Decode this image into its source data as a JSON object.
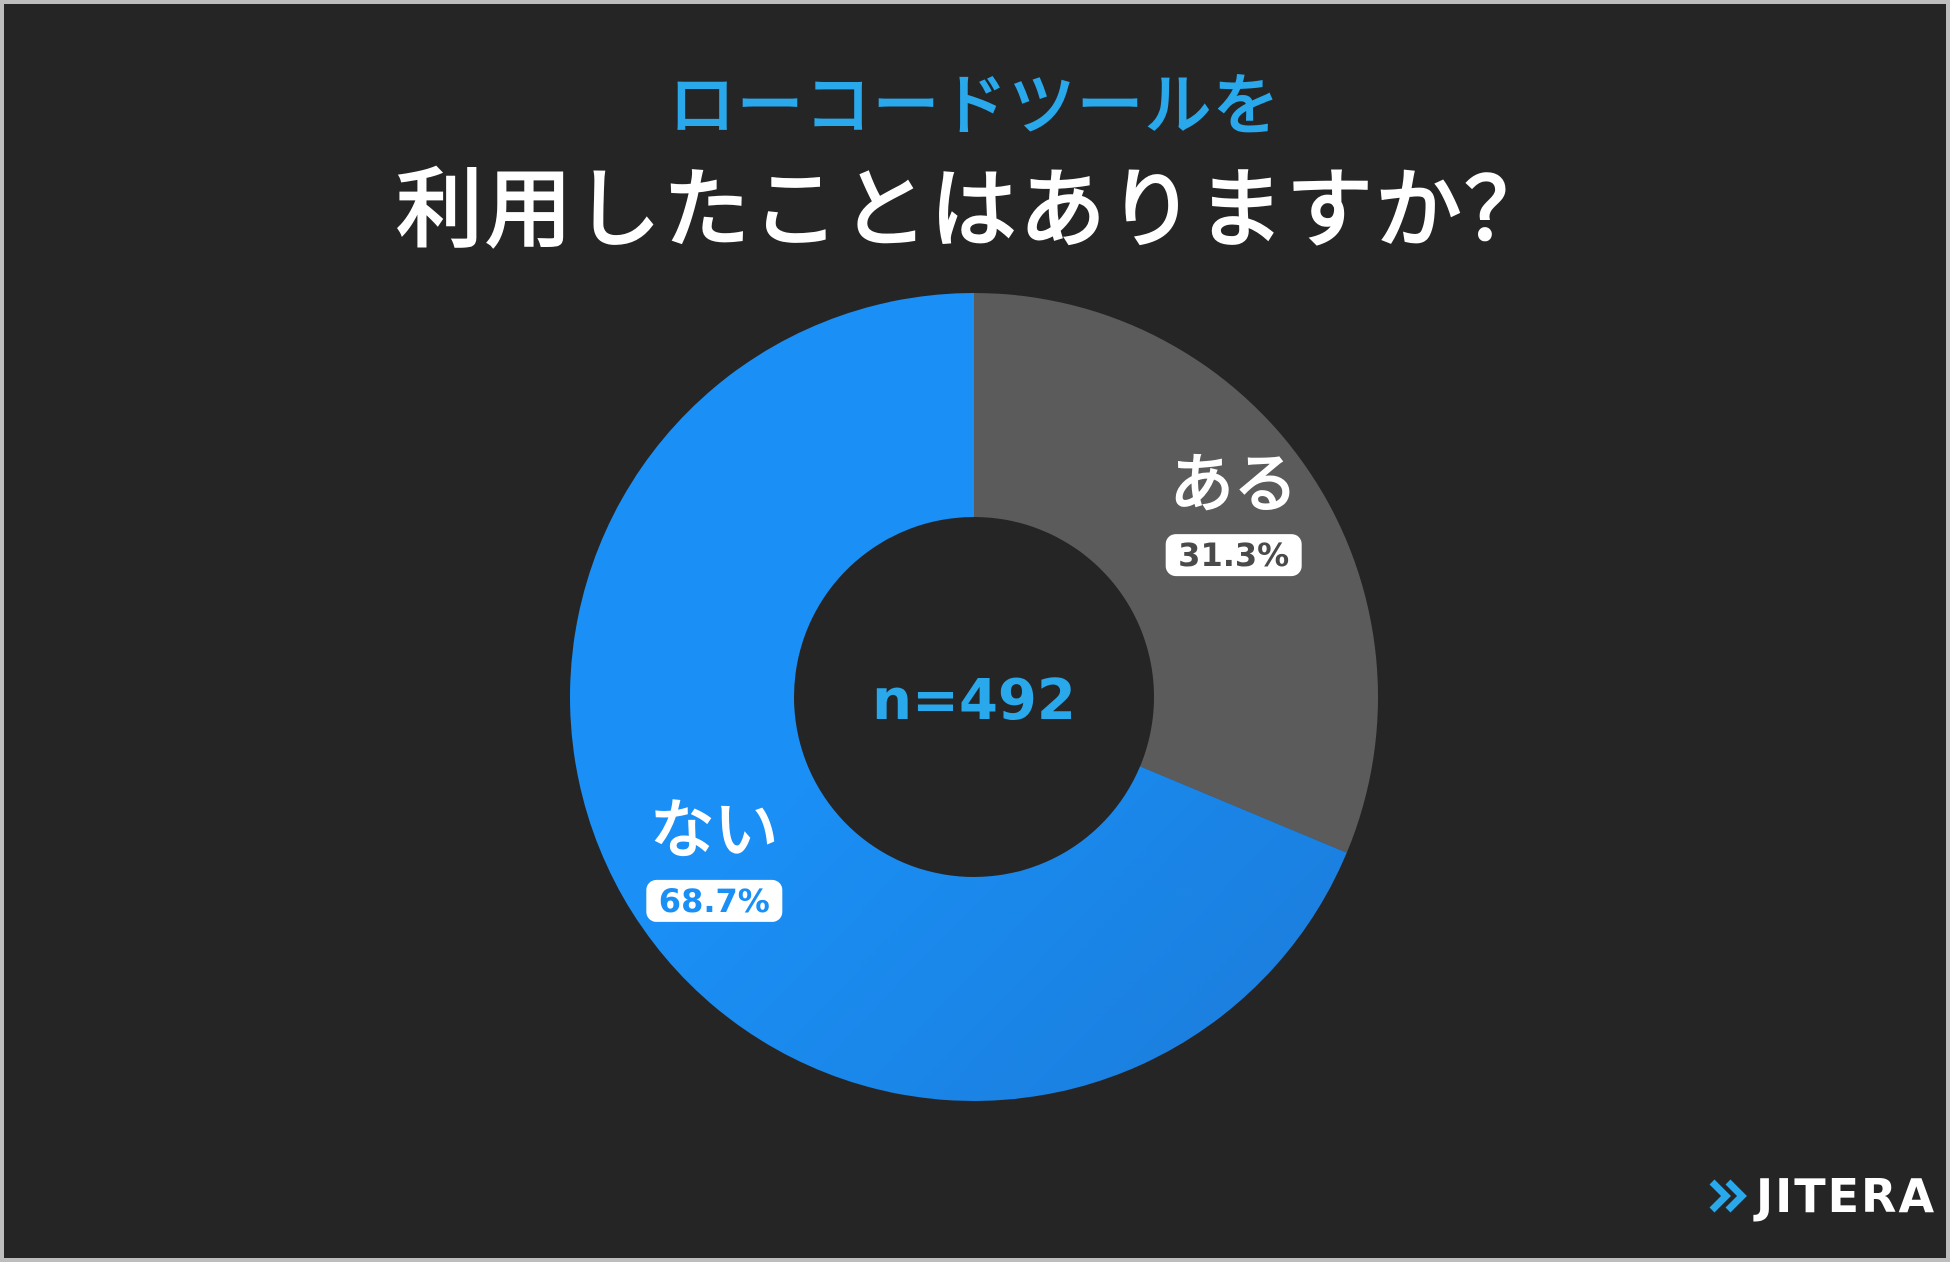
{
  "title": {
    "line1": "ローコードツールを",
    "line2": "利用したことはありますか？"
  },
  "brand": {
    "name": "JITERA",
    "icon": "double-chevron-right-icon",
    "icon_color": "#29a8ec"
  },
  "colors": {
    "background": "#252525",
    "accent": "#29a8ec",
    "slice_yes": "#5b5b5b",
    "slice_no": "#1a8ff5"
  },
  "chart_data": {
    "type": "pie",
    "donut": true,
    "center_label": "n=492",
    "slices": [
      {
        "label": "ある",
        "value": 31.3,
        "value_label": "31.3%",
        "color": "#5b5b5b"
      },
      {
        "label": "ない",
        "value": 68.7,
        "value_label": "68.7%",
        "color": "#1a8ff5"
      }
    ],
    "start": "12 o'clock",
    "direction": "clockwise"
  }
}
